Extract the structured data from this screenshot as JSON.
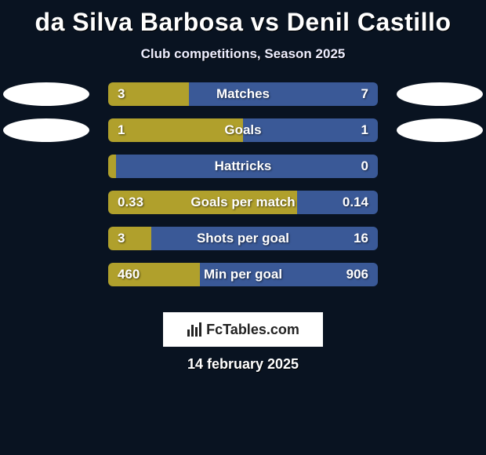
{
  "title": {
    "player1": "da Silva Barbosa",
    "vs": "vs",
    "player2": "Denil Castillo"
  },
  "subtitle": "Club competitions, Season 2025",
  "palette": {
    "background": "#091321",
    "left_bar": "#b0a02c",
    "right_bar": "#3a5997",
    "ellipse_left": "#ffffff",
    "ellipse_right": "#ffffff",
    "logo_bg": "#ffffff",
    "text": "#ffffff"
  },
  "rows": [
    {
      "label": "Matches",
      "left_val": "3",
      "right_val": "7",
      "left_pct": 30,
      "ellipse_left": true,
      "ellipse_right": true
    },
    {
      "label": "Goals",
      "left_val": "1",
      "right_val": "1",
      "left_pct": 50,
      "ellipse_left": true,
      "ellipse_right": true
    },
    {
      "label": "Hattricks",
      "left_val": "0",
      "right_val": "0",
      "left_pct": 3,
      "ellipse_left": false,
      "ellipse_right": false
    },
    {
      "label": "Goals per match",
      "left_val": "0.33",
      "right_val": "0.14",
      "left_pct": 70,
      "ellipse_left": false,
      "ellipse_right": false
    },
    {
      "label": "Shots per goal",
      "left_val": "3",
      "right_val": "16",
      "left_pct": 16,
      "ellipse_left": false,
      "ellipse_right": false
    },
    {
      "label": "Min per goal",
      "left_val": "460",
      "right_val": "906",
      "left_pct": 34,
      "ellipse_left": false,
      "ellipse_right": false
    }
  ],
  "logo_text": "FcTables.com",
  "datestamp": "14 february 2025"
}
